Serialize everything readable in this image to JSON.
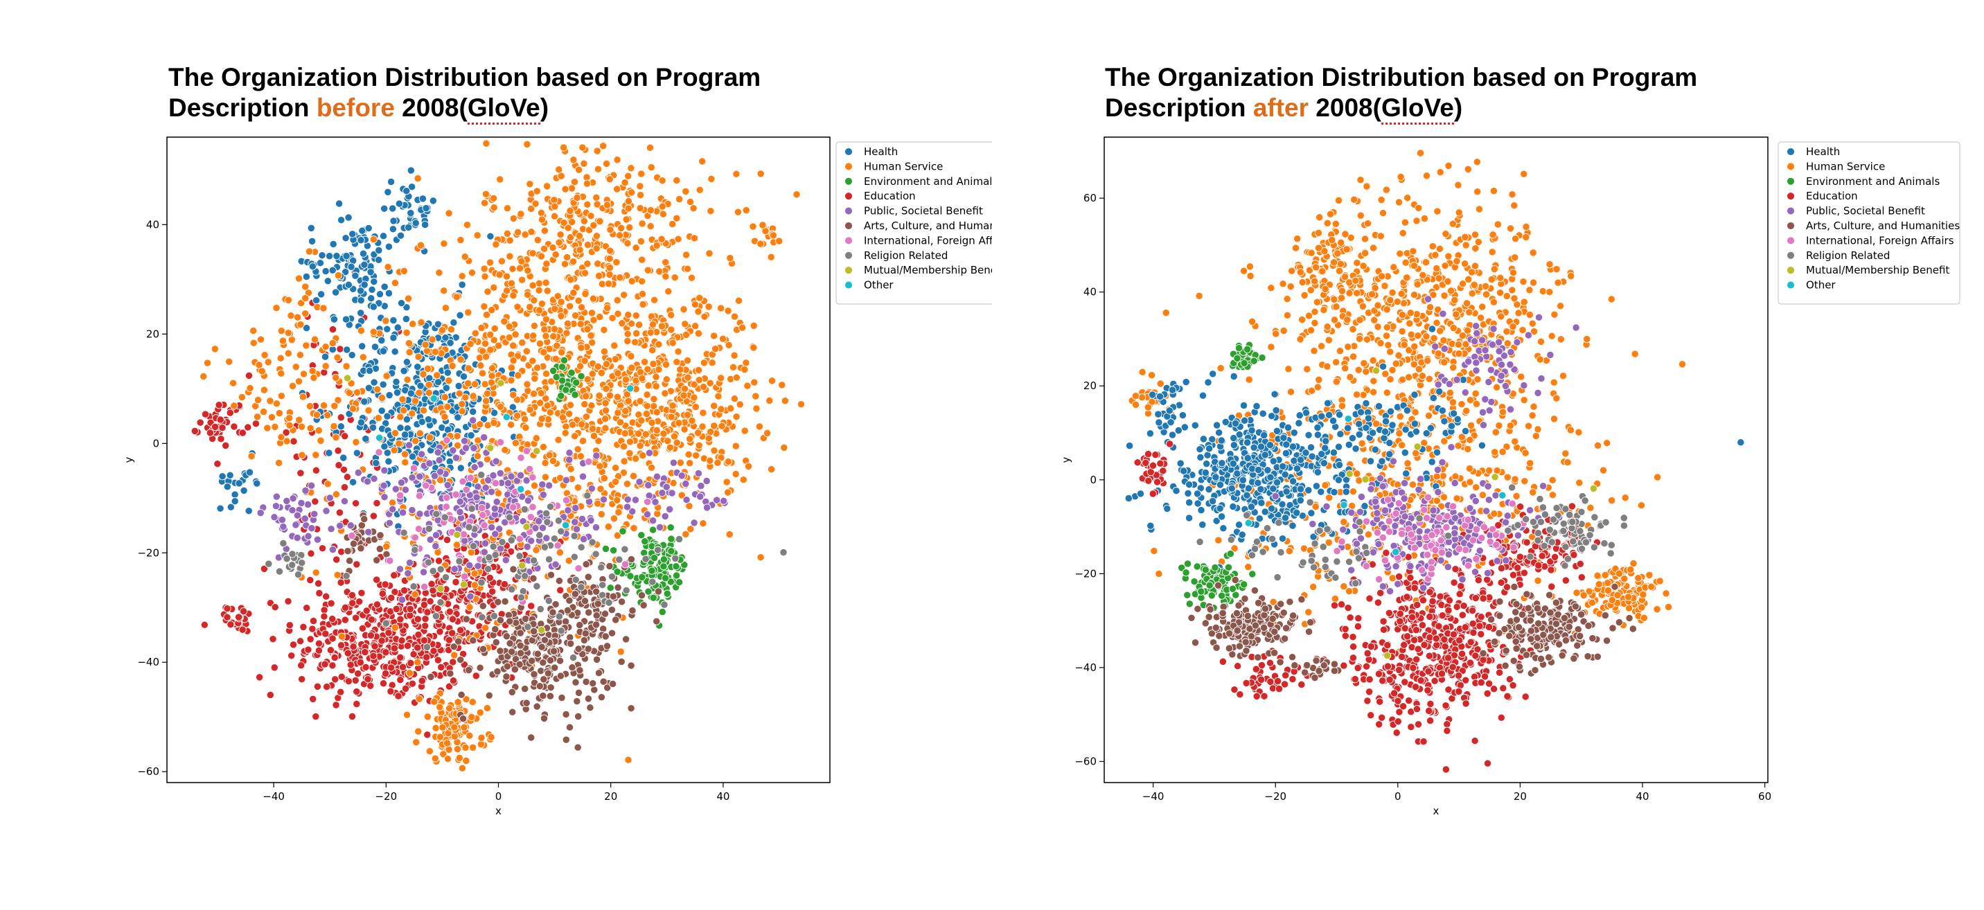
{
  "legend": {
    "categories": [
      {
        "name": "Health",
        "color": "#1f77b4"
      },
      {
        "name": "Human Service",
        "color": "#ff7f0e"
      },
      {
        "name": "Environment and Animals",
        "color": "#2ca02c"
      },
      {
        "name": "Education",
        "color": "#d62728"
      },
      {
        "name": "Public, Societal Benefit",
        "color": "#9467bd"
      },
      {
        "name": "Arts, Culture, and Humanities",
        "color": "#8c564b"
      },
      {
        "name": "International, Foreign Affairs",
        "color": "#e377c2"
      },
      {
        "name": "Religion Related",
        "color": "#7f7f7f"
      },
      {
        "name": "Mutual/Membership Benefit",
        "color": "#bcbd22"
      },
      {
        "name": "Other",
        "color": "#17becf"
      }
    ]
  },
  "chart_data": [
    {
      "type": "scatter",
      "title_line1": "The Organization Distribution based on Program",
      "title_pre": "Description ",
      "title_highlight": "before",
      "title_post1": " 2008(",
      "title_squiggle": "GloVe",
      "title_post2": ")",
      "xlabel": "x",
      "ylabel": "y",
      "xlim": [
        -59,
        59
      ],
      "ylim": [
        -62,
        56
      ],
      "xticks": [
        -40,
        -20,
        0,
        20,
        40
      ],
      "yticks": [
        -60,
        -40,
        -20,
        0,
        20,
        40
      ],
      "legend_position": "outside-right",
      "clusters": [
        {
          "cat": 3,
          "cx": -20,
          "cy": -36,
          "sx": 8,
          "sy": 6,
          "n": 420
        },
        {
          "cat": 3,
          "cx": -4,
          "cy": -26,
          "sx": 5,
          "sy": 6,
          "n": 180
        },
        {
          "cat": 3,
          "cx": -49,
          "cy": 4,
          "sx": 2,
          "sy": 2,
          "n": 40
        },
        {
          "cat": 3,
          "cx": -46,
          "cy": -32,
          "sx": 1.2,
          "sy": 1.2,
          "n": 25
        },
        {
          "cat": 3,
          "cx": -30,
          "cy": -8,
          "sx": 6,
          "sy": 18,
          "n": 90
        },
        {
          "cat": 0,
          "cx": -13,
          "cy": 7,
          "sx": 7,
          "sy": 9,
          "n": 380
        },
        {
          "cat": 0,
          "cx": -26,
          "cy": 33,
          "sx": 4,
          "sy": 5,
          "n": 110
        },
        {
          "cat": 0,
          "cx": -15,
          "cy": 43,
          "sx": 2,
          "sy": 3,
          "n": 40
        },
        {
          "cat": 0,
          "cx": -46,
          "cy": -7,
          "sx": 2,
          "sy": 2,
          "n": 20
        },
        {
          "cat": 1,
          "cx": 28,
          "cy": 8,
          "sx": 9,
          "sy": 10,
          "n": 520
        },
        {
          "cat": 1,
          "cx": 18,
          "cy": 40,
          "sx": 10,
          "sy": 8,
          "n": 260
        },
        {
          "cat": 1,
          "cx": 6,
          "cy": 15,
          "sx": 13,
          "sy": 14,
          "n": 480
        },
        {
          "cat": 1,
          "cx": -8,
          "cy": -52,
          "sx": 3,
          "sy": 3,
          "n": 110
        },
        {
          "cat": 1,
          "cx": -35,
          "cy": 12,
          "sx": 8,
          "sy": 9,
          "n": 120
        },
        {
          "cat": 1,
          "cx": 0,
          "cy": -10,
          "sx": 14,
          "sy": 14,
          "n": 240
        },
        {
          "cat": 1,
          "cx": 48,
          "cy": 38,
          "sx": 1.5,
          "sy": 1.5,
          "n": 15
        },
        {
          "cat": 2,
          "cx": 28,
          "cy": -23,
          "sx": 3,
          "sy": 3,
          "n": 120
        },
        {
          "cat": 2,
          "cx": 12,
          "cy": 11,
          "sx": 1.2,
          "sy": 1.5,
          "n": 35
        },
        {
          "cat": 5,
          "cx": 8,
          "cy": -38,
          "sx": 6,
          "sy": 5,
          "n": 260
        },
        {
          "cat": 5,
          "cx": 18,
          "cy": -28,
          "sx": 4,
          "sy": 4,
          "n": 70
        },
        {
          "cat": 5,
          "cx": -24,
          "cy": -18,
          "sx": 2,
          "sy": 2,
          "n": 30
        },
        {
          "cat": 4,
          "cx": -3,
          "cy": -12,
          "sx": 10,
          "sy": 6,
          "n": 240
        },
        {
          "cat": 4,
          "cx": -36,
          "cy": -14,
          "sx": 3,
          "sy": 3,
          "n": 40
        },
        {
          "cat": 4,
          "cx": 30,
          "cy": -10,
          "sx": 5,
          "sy": 3,
          "n": 40
        },
        {
          "cat": 6,
          "cx": -3,
          "cy": -14,
          "sx": 10,
          "sy": 6,
          "n": 60
        },
        {
          "cat": 7,
          "cx": 5,
          "cy": -22,
          "sx": 14,
          "sy": 6,
          "n": 90
        },
        {
          "cat": 7,
          "cx": -37,
          "cy": -21,
          "sx": 1.5,
          "sy": 1.5,
          "n": 15
        },
        {
          "cat": 8,
          "cx": 0,
          "cy": -10,
          "sx": 15,
          "sy": 15,
          "n": 10
        },
        {
          "cat": 9,
          "cx": 0,
          "cy": 0,
          "sx": 15,
          "sy": 15,
          "n": 6
        }
      ]
    },
    {
      "type": "scatter",
      "title_line1": "The Organization Distribution based on Program",
      "title_pre": "Description ",
      "title_highlight": "after",
      "title_post1": " 2008(",
      "title_squiggle": "GloVe",
      "title_post2": ")",
      "xlabel": "x",
      "ylabel": "y",
      "xlim": [
        -48,
        60.5
      ],
      "ylim": [
        -64.5,
        73
      ],
      "xticks": [
        -40,
        -20,
        0,
        20,
        40,
        60
      ],
      "yticks": [
        -60,
        -40,
        -20,
        0,
        20,
        40,
        60
      ],
      "legend_position": "outside-right",
      "clusters": [
        {
          "cat": 1,
          "cx": 5,
          "cy": 35,
          "sx": 11,
          "sy": 13,
          "n": 600
        },
        {
          "cat": 1,
          "cx": 2,
          "cy": 0,
          "sx": 16,
          "sy": 13,
          "n": 420
        },
        {
          "cat": 1,
          "cx": 37,
          "cy": -24,
          "sx": 3,
          "sy": 3,
          "n": 120
        },
        {
          "cat": 1,
          "cx": -40,
          "cy": 18,
          "sx": 2,
          "sy": 2,
          "n": 25
        },
        {
          "cat": 1,
          "cx": -12,
          "cy": 44,
          "sx": 3,
          "sy": 5,
          "n": 80
        },
        {
          "cat": 0,
          "cx": -22,
          "cy": 2,
          "sx": 8,
          "sy": 7,
          "n": 420
        },
        {
          "cat": 0,
          "cx": 0,
          "cy": 10,
          "sx": 6,
          "sy": 5,
          "n": 80
        },
        {
          "cat": 0,
          "cx": -38,
          "cy": 15,
          "sx": 2,
          "sy": 3,
          "n": 30
        },
        {
          "cat": 0,
          "cx": 56,
          "cy": 8,
          "sx": 0.1,
          "sy": 0.1,
          "n": 1
        },
        {
          "cat": 3,
          "cx": 6,
          "cy": -35,
          "sx": 7,
          "sy": 9,
          "n": 480
        },
        {
          "cat": 3,
          "cx": 22,
          "cy": -15,
          "sx": 5,
          "sy": 4,
          "n": 110
        },
        {
          "cat": 3,
          "cx": -22,
          "cy": -42,
          "sx": 3,
          "sy": 2,
          "n": 40
        },
        {
          "cat": 3,
          "cx": -40,
          "cy": 3,
          "sx": 1.5,
          "sy": 3,
          "n": 30
        },
        {
          "cat": 2,
          "cx": -30,
          "cy": -22,
          "sx": 2.5,
          "sy": 2.5,
          "n": 90
        },
        {
          "cat": 2,
          "cx": -25,
          "cy": 26,
          "sx": 1,
          "sy": 1.5,
          "n": 30
        },
        {
          "cat": 5,
          "cx": -24,
          "cy": -31,
          "sx": 4,
          "sy": 3,
          "n": 150
        },
        {
          "cat": 5,
          "cx": 24,
          "cy": -32,
          "sx": 5,
          "sy": 4,
          "n": 180
        },
        {
          "cat": 5,
          "cx": -13,
          "cy": -40,
          "sx": 1.5,
          "sy": 1.5,
          "n": 20
        },
        {
          "cat": 4,
          "cx": 5,
          "cy": -10,
          "sx": 8,
          "sy": 6,
          "n": 200
        },
        {
          "cat": 4,
          "cx": 15,
          "cy": 25,
          "sx": 6,
          "sy": 6,
          "n": 60
        },
        {
          "cat": 6,
          "cx": 5,
          "cy": -12,
          "sx": 7,
          "sy": 5,
          "n": 70
        },
        {
          "cat": 7,
          "cx": 28,
          "cy": -10,
          "sx": 4,
          "sy": 3,
          "n": 70
        },
        {
          "cat": 7,
          "cx": -12,
          "cy": -15,
          "sx": 8,
          "sy": 5,
          "n": 40
        },
        {
          "cat": 8,
          "cx": 0,
          "cy": 0,
          "sx": 15,
          "sy": 15,
          "n": 8
        },
        {
          "cat": 9,
          "cx": 0,
          "cy": 0,
          "sx": 15,
          "sy": 15,
          "n": 5
        }
      ]
    }
  ]
}
